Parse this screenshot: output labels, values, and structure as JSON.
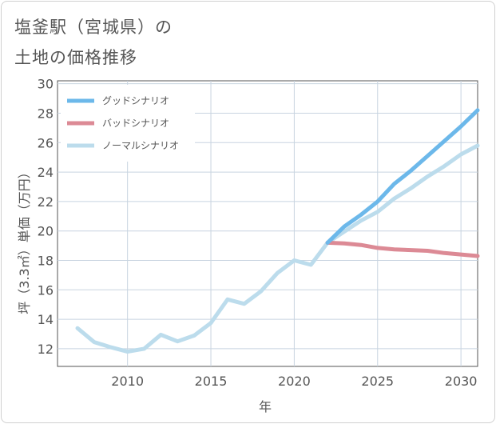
{
  "title_lines": [
    "塩釜駅（宮城県）の",
    "土地の価格推移"
  ],
  "chart_data": {
    "type": "line",
    "xlabel": "年",
    "ylabel": "坪（3.3㎡）単価（万円）",
    "xlim": [
      2005.8,
      2031
    ],
    "ylim": [
      10.8,
      30.2
    ],
    "x_ticks": [
      2010,
      2015,
      2020,
      2025,
      2030
    ],
    "y_ticks": [
      12,
      14,
      16,
      18,
      20,
      22,
      24,
      26,
      28,
      30
    ],
    "legend_position": "top-left",
    "series": [
      {
        "name": "グッドシナリオ",
        "color": "#6cb8ea",
        "x": [
          2022,
          2023,
          2024,
          2025,
          2026,
          2027,
          2028,
          2029,
          2030,
          2031
        ],
        "values": [
          19.2,
          20.3,
          21.1,
          22.0,
          23.2,
          24.1,
          25.1,
          26.1,
          27.1,
          28.2
        ]
      },
      {
        "name": "バッドシナリオ",
        "color": "#dc8a95",
        "x": [
          2022,
          2023,
          2024,
          2025,
          2026,
          2027,
          2028,
          2029,
          2030,
          2031
        ],
        "values": [
          19.2,
          19.15,
          19.05,
          18.85,
          18.75,
          18.7,
          18.65,
          18.5,
          18.4,
          18.3
        ]
      },
      {
        "name": "ノーマルシナリオ",
        "color": "#bcdcec",
        "x": [
          2007,
          2008,
          2009,
          2010,
          2011,
          2012,
          2013,
          2014,
          2015,
          2016,
          2017,
          2018,
          2019,
          2020,
          2021,
          2022,
          2023,
          2024,
          2025,
          2026,
          2027,
          2028,
          2029,
          2030,
          2031
        ],
        "values": [
          13.4,
          12.45,
          12.1,
          11.8,
          12.0,
          12.95,
          12.5,
          12.9,
          13.75,
          15.35,
          15.05,
          15.9,
          17.15,
          18.0,
          17.7,
          19.2,
          19.95,
          20.7,
          21.3,
          22.2,
          22.9,
          23.7,
          24.4,
          25.2,
          25.8
        ]
      }
    ]
  }
}
